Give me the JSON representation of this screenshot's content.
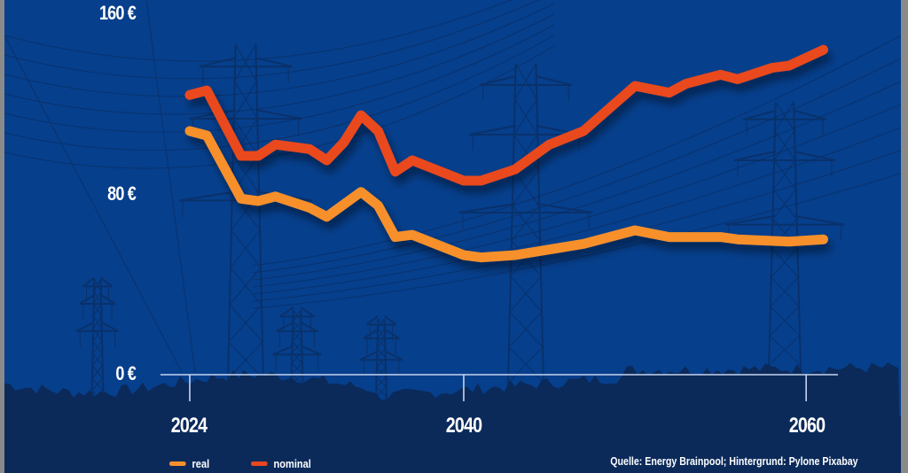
{
  "chart_data": {
    "type": "line",
    "title": "",
    "xlabel": "",
    "ylabel": "",
    "xlim": [
      2022.5,
      2062
    ],
    "ylim": [
      0,
      160
    ],
    "x_ticks": [
      2024,
      2040,
      2060
    ],
    "x_tick_labels": [
      "2024",
      "2040",
      "2060"
    ],
    "y_ticks": [
      0,
      80,
      160
    ],
    "y_tick_labels": [
      "0 €",
      "80 €",
      "160 €"
    ],
    "grid": false,
    "legend_position": "bottom-left",
    "series": [
      {
        "name": "real",
        "color": "#f7902c",
        "x": [
          2024,
          2025,
          2027,
          2028,
          2029,
          2031,
          2032,
          2034,
          2035,
          2036,
          2037,
          2040,
          2041,
          2043,
          2047,
          2050,
          2052,
          2055,
          2056,
          2059,
          2061
        ],
        "values": [
          108,
          106,
          78,
          77,
          79,
          74,
          70,
          81,
          75,
          61,
          62,
          53,
          52,
          53,
          58,
          64,
          61,
          61,
          60,
          59,
          60
        ]
      },
      {
        "name": "nominal",
        "color": "#e9481f",
        "x": [
          2024,
          2025,
          2027,
          2028,
          2029,
          2031,
          2032,
          2033,
          2034,
          2035,
          2036,
          2037,
          2038,
          2040,
          2041,
          2043,
          2045,
          2047,
          2050,
          2052,
          2053,
          2055,
          2056,
          2058,
          2059,
          2061
        ],
        "values": [
          124,
          126,
          97,
          97,
          102,
          100,
          95,
          103,
          115,
          108,
          90,
          95,
          92,
          86,
          86,
          91,
          102,
          108,
          128,
          125,
          129,
          133,
          131,
          136,
          137,
          144
        ]
      }
    ]
  },
  "legend": [
    {
      "label": "real",
      "color": "#f7902c"
    },
    {
      "label": "nominal",
      "color": "#e9481f"
    }
  ],
  "source": "Quelle: Energy Brainpool; Hintergrund: Pylone Pixabay",
  "colors": {
    "sky": "#063f8c",
    "ground": "#0b2a5a",
    "axis": "#c8d4ee",
    "pylon": "#0a2f66"
  }
}
